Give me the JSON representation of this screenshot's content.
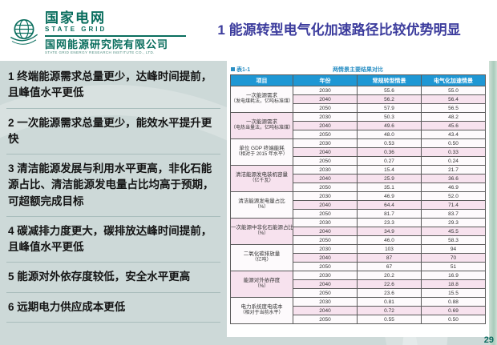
{
  "header": {
    "logo": {
      "brand_cn": "国家电网",
      "brand_en": "STATE GRID",
      "institute_cn": "国网能源研究院有限公司",
      "institute_en": "STATE GRID ENERGY RESEARCH INSTITUTE CO., LTD."
    },
    "title": "1  能源转型电气化加速路径比较优势明显"
  },
  "left_panel": {
    "items": [
      "1 终端能源需求总量更少，达峰时间提前，且峰值水平更低",
      "2 一次能源需求总量更少，能效水平提升更快",
      "3 清洁能源发展与利用水平更高，非化石能源占比、清洁能源发电量占比均高于预期，可超额完成目标",
      "4 碳减排力度更大，碳排放达峰时间提前，且峰值水平更低",
      "5 能源对外依存度较低，安全水平更高",
      "6 远期电力供应成本更低"
    ]
  },
  "table": {
    "caption_label": "表1-1",
    "caption_title": "两情景主要结果对比",
    "columns": [
      "项目",
      "年份",
      "常规转型情景",
      "电气化加速情景"
    ],
    "groups": [
      {
        "label_lines": [
          "一次能源需求",
          "（发电煤耗法，亿吨标准煤）"
        ],
        "rows": [
          [
            "2030",
            "55.6",
            "55.0"
          ],
          [
            "2040",
            "56.2",
            "56.4"
          ],
          [
            "2050",
            "57.9",
            "56.5"
          ]
        ]
      },
      {
        "label_lines": [
          "一次能源需求",
          "（电热当量法，亿吨标准煤）"
        ],
        "rows": [
          [
            "2030",
            "50.3",
            "48.2"
          ],
          [
            "2040",
            "49.6",
            "45.6"
          ],
          [
            "2050",
            "48.0",
            "43.4"
          ]
        ]
      },
      {
        "label_lines": [
          "单位 GDP 终端能耗",
          "（相对于 2015 年水平）"
        ],
        "rows": [
          [
            "2030",
            "0.53",
            "0.50"
          ],
          [
            "2040",
            "0.36",
            "0.33"
          ],
          [
            "2050",
            "0.27",
            "0.24"
          ]
        ]
      },
      {
        "label_lines": [
          "清洁能源发电装机容量",
          "（亿千瓦）"
        ],
        "rows": [
          [
            "2030",
            "15.4",
            "21.7"
          ],
          [
            "2040",
            "25.9",
            "36.6"
          ],
          [
            "2050",
            "35.1",
            "46.9"
          ]
        ]
      },
      {
        "label_lines": [
          "清洁能源发电量占比",
          "（%）"
        ],
        "rows": [
          [
            "2030",
            "46.9",
            "52.0"
          ],
          [
            "2040",
            "64.4",
            "71.4"
          ],
          [
            "2050",
            "81.7",
            "83.7"
          ]
        ]
      },
      {
        "label_lines": [
          "一次能源中非化石能源占比",
          "（%）"
        ],
        "rows": [
          [
            "2030",
            "23.3",
            "29.3"
          ],
          [
            "2040",
            "34.9",
            "45.5"
          ],
          [
            "2050",
            "46.0",
            "58.3"
          ]
        ]
      },
      {
        "label_lines": [
          "二氧化碳排放量",
          "（亿吨）"
        ],
        "rows": [
          [
            "2030",
            "103",
            "94"
          ],
          [
            "2040",
            "87",
            "70"
          ],
          [
            "2050",
            "67",
            "51"
          ]
        ]
      },
      {
        "label_lines": [
          "能源对外依存度",
          "（%）"
        ],
        "rows": [
          [
            "2030",
            "20.2",
            "16.9"
          ],
          [
            "2040",
            "22.6",
            "18.8"
          ],
          [
            "2050",
            "23.6",
            "15.5"
          ]
        ]
      },
      {
        "label_lines": [
          "电力系统度电成本",
          "（相对于当前水平）"
        ],
        "rows": [
          [
            "2030",
            "0.81",
            "0.88"
          ],
          [
            "2040",
            "0.72",
            "0.69"
          ],
          [
            "2050",
            "0.55",
            "0.50"
          ]
        ]
      }
    ]
  },
  "footer": {
    "page_number": "29"
  },
  "colors": {
    "brand_green": "#0a6e5e",
    "title_purple": "#3c3c9d",
    "table_header_blue": "#1e97d4",
    "row_pink": "#f7e2ee",
    "main_bg": "#cdd9d8",
    "caption_blue": "#2a8fc4"
  }
}
